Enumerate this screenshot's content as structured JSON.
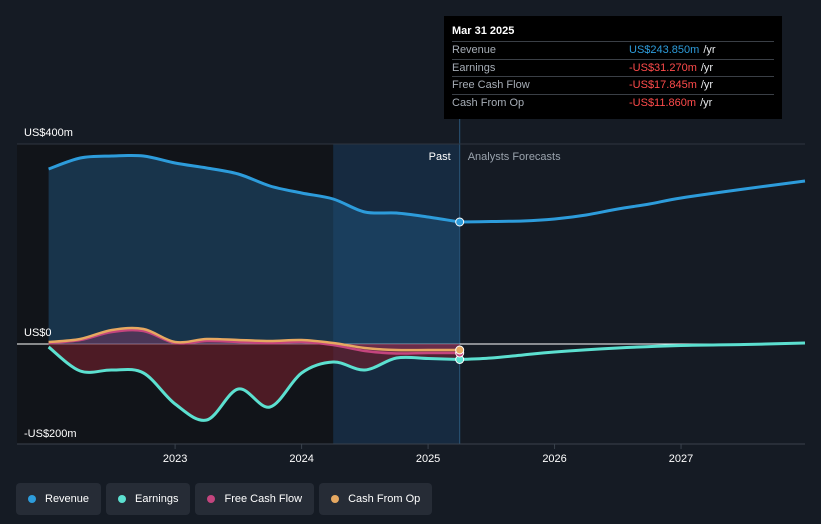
{
  "tooltip": {
    "date": "Mar 31 2025",
    "rows": [
      {
        "name": "Revenue",
        "value": "US$243.850m",
        "unit": "/yr",
        "color": "#2d9cdb"
      },
      {
        "name": "Earnings",
        "value": "-US$31.270m",
        "unit": "/yr",
        "color": "#ff4b4b"
      },
      {
        "name": "Free Cash Flow",
        "value": "-US$17.845m",
        "unit": "/yr",
        "color": "#ff4b4b"
      },
      {
        "name": "Cash From Op",
        "value": "-US$11.860m",
        "unit": "/yr",
        "color": "#ff4b4b"
      }
    ]
  },
  "regions": {
    "past": "Past",
    "forecast": "Analysts Forecasts"
  },
  "legend": [
    {
      "name": "Revenue",
      "color": "#2d9cdb"
    },
    {
      "name": "Earnings",
      "color": "#5ce0d0"
    },
    {
      "name": "Free Cash Flow",
      "color": "#c4457e"
    },
    {
      "name": "Cash From Op",
      "color": "#e6a861"
    }
  ],
  "chart_data": {
    "type": "line",
    "unit": "US$ millions",
    "y_tick_labels": [
      "US$400m",
      "US$0",
      "-US$200m"
    ],
    "y_ticks": [
      400,
      0,
      -200
    ],
    "ylim": [
      -200,
      400
    ],
    "x_tick_labels": [
      "2023",
      "2024",
      "2025",
      "2026",
      "2027"
    ],
    "x_ticks": [
      2023,
      2024,
      2025,
      2026,
      2027
    ],
    "xlim": [
      2021.75,
      2027.98
    ],
    "past_end": 2025.25,
    "highlight_start": 2024.25,
    "grid": true,
    "legend_position": "bottom-left",
    "series": [
      {
        "name": "Revenue",
        "color": "#2d9cdb",
        "fill": true,
        "points": [
          [
            2022.0,
            350
          ],
          [
            2022.25,
            372
          ],
          [
            2022.5,
            376
          ],
          [
            2022.75,
            376
          ],
          [
            2023.0,
            362
          ],
          [
            2023.25,
            352
          ],
          [
            2023.5,
            340
          ],
          [
            2023.75,
            316
          ],
          [
            2024.0,
            302
          ],
          [
            2024.25,
            290
          ],
          [
            2024.5,
            264
          ],
          [
            2024.75,
            262
          ],
          [
            2025.0,
            254
          ],
          [
            2025.25,
            244
          ]
        ],
        "forecast": [
          [
            2025.25,
            244
          ],
          [
            2025.5,
            245
          ],
          [
            2025.75,
            246
          ],
          [
            2026.0,
            250
          ],
          [
            2026.25,
            258
          ],
          [
            2026.5,
            270
          ],
          [
            2026.75,
            280
          ],
          [
            2027.0,
            292
          ],
          [
            2027.5,
            310
          ],
          [
            2027.98,
            326
          ]
        ]
      },
      {
        "name": "Earnings",
        "color": "#5ce0d0",
        "fill": true,
        "points": [
          [
            2022.0,
            -6
          ],
          [
            2022.25,
            -54
          ],
          [
            2022.5,
            -52
          ],
          [
            2022.75,
            -58
          ],
          [
            2023.0,
            -120
          ],
          [
            2023.25,
            -152
          ],
          [
            2023.5,
            -90
          ],
          [
            2023.75,
            -126
          ],
          [
            2024.0,
            -58
          ],
          [
            2024.25,
            -36
          ],
          [
            2024.5,
            -52
          ],
          [
            2024.75,
            -28
          ],
          [
            2025.0,
            -29
          ],
          [
            2025.25,
            -31
          ]
        ],
        "forecast": [
          [
            2025.25,
            -31
          ],
          [
            2025.5,
            -28
          ],
          [
            2025.75,
            -22
          ],
          [
            2026.0,
            -16
          ],
          [
            2026.5,
            -8
          ],
          [
            2027.0,
            -3
          ],
          [
            2027.5,
            -1
          ],
          [
            2027.98,
            2
          ]
        ]
      },
      {
        "name": "Free Cash Flow",
        "color": "#c4457e",
        "fill": true,
        "points": [
          [
            2022.0,
            2
          ],
          [
            2022.25,
            8
          ],
          [
            2022.5,
            24
          ],
          [
            2022.75,
            26
          ],
          [
            2023.0,
            2
          ],
          [
            2023.25,
            6
          ],
          [
            2023.5,
            4
          ],
          [
            2023.75,
            2
          ],
          [
            2024.0,
            4
          ],
          [
            2024.25,
            -2
          ],
          [
            2024.5,
            -14
          ],
          [
            2024.75,
            -19
          ],
          [
            2025.0,
            -18
          ],
          [
            2025.25,
            -18
          ]
        ],
        "forecast": []
      },
      {
        "name": "Cash From Op",
        "color": "#e6a861",
        "fill": false,
        "points": [
          [
            2022.0,
            4
          ],
          [
            2022.25,
            10
          ],
          [
            2022.5,
            28
          ],
          [
            2022.75,
            30
          ],
          [
            2023.0,
            4
          ],
          [
            2023.25,
            10
          ],
          [
            2023.5,
            8
          ],
          [
            2023.75,
            6
          ],
          [
            2024.0,
            8
          ],
          [
            2024.25,
            2
          ],
          [
            2024.5,
            -8
          ],
          [
            2024.75,
            -12
          ],
          [
            2025.0,
            -12
          ],
          [
            2025.25,
            -12
          ]
        ],
        "forecast": []
      }
    ]
  }
}
